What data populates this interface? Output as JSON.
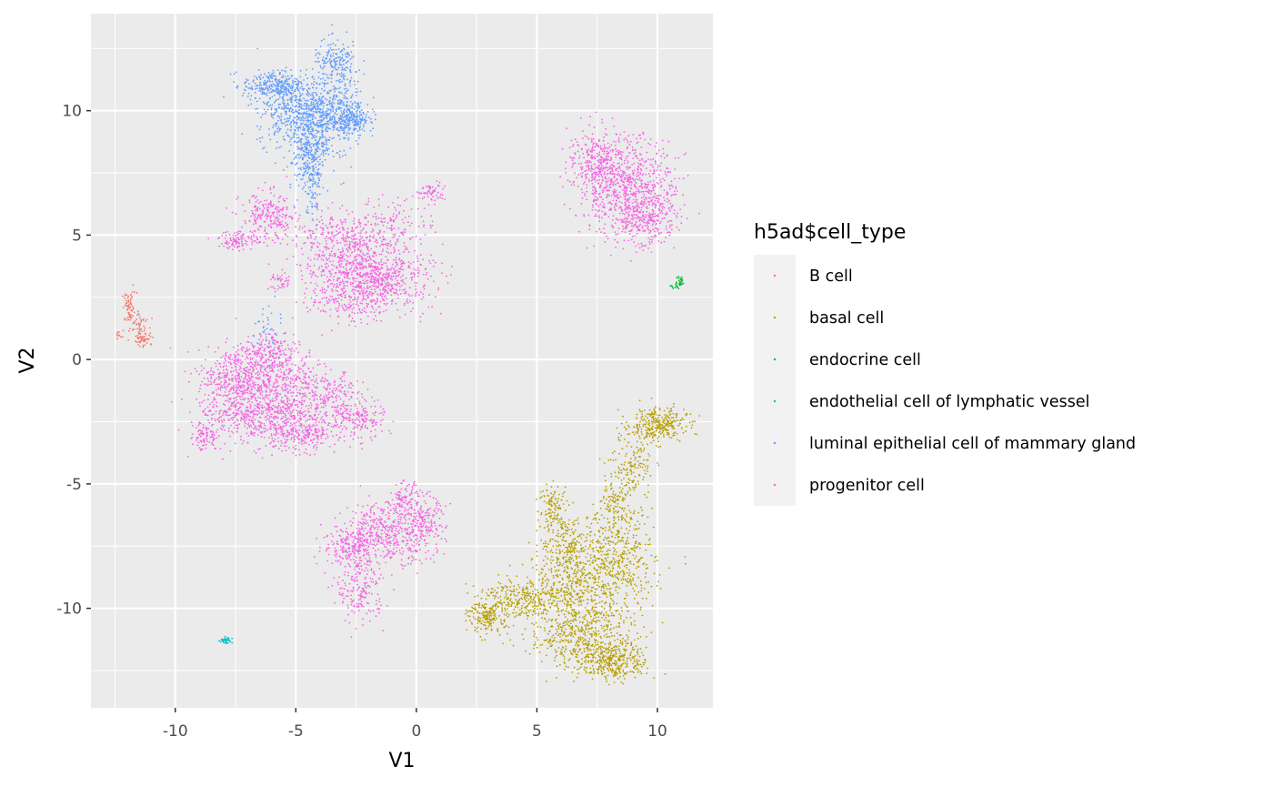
{
  "chart_data": {
    "type": "scatter",
    "xlabel": "V1",
    "ylabel": "V2",
    "xlim": [
      -13.5,
      12.3
    ],
    "ylim": [
      -14.0,
      13.9
    ],
    "x_ticks": [
      -10,
      -5,
      0,
      5,
      10
    ],
    "y_ticks": [
      -10,
      -5,
      0,
      5,
      10
    ],
    "x_tick_labels": [
      "-10",
      "-5",
      "0",
      "5",
      "10"
    ],
    "y_tick_labels": [
      "-10",
      "-5",
      "0",
      "5",
      "10"
    ],
    "grid": true,
    "legend": {
      "title": "h5ad$cell_type",
      "placement": "right",
      "entries": [
        {
          "label": "B cell",
          "color": "#F8766D"
        },
        {
          "label": "basal cell",
          "color": "#B79F00"
        },
        {
          "label": "endocrine cell",
          "color": "#00BA38"
        },
        {
          "label": "endothelial cell of lymphatic vessel",
          "color": "#00BFC4"
        },
        {
          "label": "luminal epithelial cell of mammary gland",
          "color": "#619CFF"
        },
        {
          "label": "progenitor cell",
          "color": "#F564E3"
        }
      ]
    },
    "series": [
      {
        "name": "B cell",
        "color": "#F8766D",
        "points": [
          {
            "x": -11.9,
            "y": 2.1,
            "sx": 0.15,
            "sy": 0.3,
            "n": 60
          },
          {
            "x": -11.5,
            "y": 1.3,
            "sx": 0.2,
            "sy": 0.3,
            "n": 60
          },
          {
            "x": -11.3,
            "y": 0.8,
            "sx": 0.2,
            "sy": 0.15,
            "n": 40
          },
          {
            "x": -12.3,
            "y": 1.0,
            "sx": 0.1,
            "sy": 0.08,
            "n": 10
          }
        ]
      },
      {
        "name": "basal cell",
        "color": "#B79F00",
        "points": [
          {
            "x": 10.0,
            "y": -2.6,
            "sx": 0.6,
            "sy": 0.35,
            "n": 300
          },
          {
            "x": 9.0,
            "y": -4.3,
            "sx": 0.4,
            "sy": 0.7,
            "n": 150
          },
          {
            "x": 8.2,
            "y": -6.0,
            "sx": 0.4,
            "sy": 0.7,
            "n": 120
          },
          {
            "x": 5.7,
            "y": -6.0,
            "sx": 0.3,
            "sy": 0.5,
            "n": 120
          },
          {
            "x": 6.3,
            "y": -7.4,
            "sx": 0.6,
            "sy": 0.6,
            "n": 200
          },
          {
            "x": 8.3,
            "y": -8.3,
            "sx": 0.8,
            "sy": 1.1,
            "n": 500
          },
          {
            "x": 6.3,
            "y": -9.0,
            "sx": 0.8,
            "sy": 0.6,
            "n": 300
          },
          {
            "x": 4.3,
            "y": -9.6,
            "sx": 0.8,
            "sy": 0.4,
            "n": 250
          },
          {
            "x": 3.0,
            "y": -10.3,
            "sx": 0.4,
            "sy": 0.4,
            "n": 200
          },
          {
            "x": 6.7,
            "y": -11.0,
            "sx": 1.0,
            "sy": 0.7,
            "n": 500
          },
          {
            "x": 8.2,
            "y": -12.1,
            "sx": 0.7,
            "sy": 0.4,
            "n": 350
          }
        ]
      },
      {
        "name": "endocrine cell",
        "color": "#00BA38",
        "points": [
          {
            "x": 10.95,
            "y": 3.15,
            "sx": 0.08,
            "sy": 0.15,
            "n": 25
          },
          {
            "x": 10.7,
            "y": 2.9,
            "sx": 0.1,
            "sy": 0.05,
            "n": 10
          }
        ]
      },
      {
        "name": "endothelial cell of lymphatic vessel",
        "color": "#00BFC4",
        "points": [
          {
            "x": -7.9,
            "y": -11.3,
            "sx": 0.12,
            "sy": 0.08,
            "n": 35
          }
        ]
      },
      {
        "name": "luminal epithelial cell of mammary gland",
        "color": "#619CFF",
        "points": [
          {
            "x": -6.0,
            "y": 11.0,
            "sx": 0.6,
            "sy": 0.3,
            "n": 250
          },
          {
            "x": -5.0,
            "y": 10.0,
            "sx": 0.8,
            "sy": 0.7,
            "n": 500
          },
          {
            "x": -3.5,
            "y": 10.0,
            "sx": 0.7,
            "sy": 0.6,
            "n": 400
          },
          {
            "x": -2.6,
            "y": 9.6,
            "sx": 0.3,
            "sy": 0.3,
            "n": 150
          },
          {
            "x": -3.3,
            "y": 11.8,
            "sx": 0.5,
            "sy": 0.5,
            "n": 200
          },
          {
            "x": -4.3,
            "y": 8.6,
            "sx": 0.5,
            "sy": 0.5,
            "n": 250
          },
          {
            "x": -4.4,
            "y": 7.5,
            "sx": 0.3,
            "sy": 0.5,
            "n": 120
          },
          {
            "x": -4.3,
            "y": 6.3,
            "sx": 0.15,
            "sy": 0.5,
            "n": 40
          },
          {
            "x": -6.2,
            "y": 1.2,
            "sx": 0.3,
            "sy": 0.6,
            "n": 40
          }
        ]
      },
      {
        "name": "progenitor cell",
        "color": "#F564E3",
        "points": [
          {
            "x": 8.7,
            "y": 6.9,
            "sx": 1.0,
            "sy": 1.0,
            "n": 800
          },
          {
            "x": 7.5,
            "y": 8.0,
            "sx": 0.6,
            "sy": 0.6,
            "n": 250
          },
          {
            "x": 9.6,
            "y": 5.7,
            "sx": 0.6,
            "sy": 0.5,
            "n": 250
          },
          {
            "x": -6.1,
            "y": 5.7,
            "sx": 0.6,
            "sy": 0.5,
            "n": 250
          },
          {
            "x": -7.4,
            "y": 4.8,
            "sx": 0.4,
            "sy": 0.2,
            "n": 100
          },
          {
            "x": -3.0,
            "y": 4.5,
            "sx": 1.0,
            "sy": 0.7,
            "n": 500
          },
          {
            "x": -1.3,
            "y": 3.2,
            "sx": 1.0,
            "sy": 0.6,
            "n": 500
          },
          {
            "x": -2.8,
            "y": 2.7,
            "sx": 0.8,
            "sy": 0.6,
            "n": 300
          },
          {
            "x": -0.8,
            "y": 5.5,
            "sx": 0.8,
            "sy": 0.5,
            "n": 120
          },
          {
            "x": 0.6,
            "y": 6.7,
            "sx": 0.3,
            "sy": 0.2,
            "n": 60
          },
          {
            "x": -5.6,
            "y": 3.1,
            "sx": 0.2,
            "sy": 0.2,
            "n": 40
          },
          {
            "x": -6.3,
            "y": 0.2,
            "sx": 0.6,
            "sy": 0.4,
            "n": 200
          },
          {
            "x": -7.5,
            "y": -0.8,
            "sx": 0.8,
            "sy": 0.6,
            "n": 400
          },
          {
            "x": -5.5,
            "y": -1.2,
            "sx": 1.0,
            "sy": 0.8,
            "n": 600
          },
          {
            "x": -7.0,
            "y": -2.4,
            "sx": 1.0,
            "sy": 0.5,
            "n": 350
          },
          {
            "x": -4.8,
            "y": -2.9,
            "sx": 0.8,
            "sy": 0.4,
            "n": 300
          },
          {
            "x": -8.8,
            "y": -3.1,
            "sx": 0.3,
            "sy": 0.3,
            "n": 80
          },
          {
            "x": -2.5,
            "y": -2.4,
            "sx": 0.6,
            "sy": 0.4,
            "n": 200
          },
          {
            "x": -3.3,
            "y": -1.4,
            "sx": 0.5,
            "sy": 0.4,
            "n": 100
          },
          {
            "x": -1.2,
            "y": -6.9,
            "sx": 0.9,
            "sy": 0.6,
            "n": 450
          },
          {
            "x": 0.2,
            "y": -6.6,
            "sx": 0.5,
            "sy": 0.6,
            "n": 200
          },
          {
            "x": -2.7,
            "y": -7.5,
            "sx": 0.6,
            "sy": 0.4,
            "n": 200
          },
          {
            "x": -2.3,
            "y": -9.2,
            "sx": 0.5,
            "sy": 0.7,
            "n": 200
          },
          {
            "x": -0.5,
            "y": -5.6,
            "sx": 0.3,
            "sy": 0.3,
            "n": 80
          }
        ]
      }
    ]
  }
}
